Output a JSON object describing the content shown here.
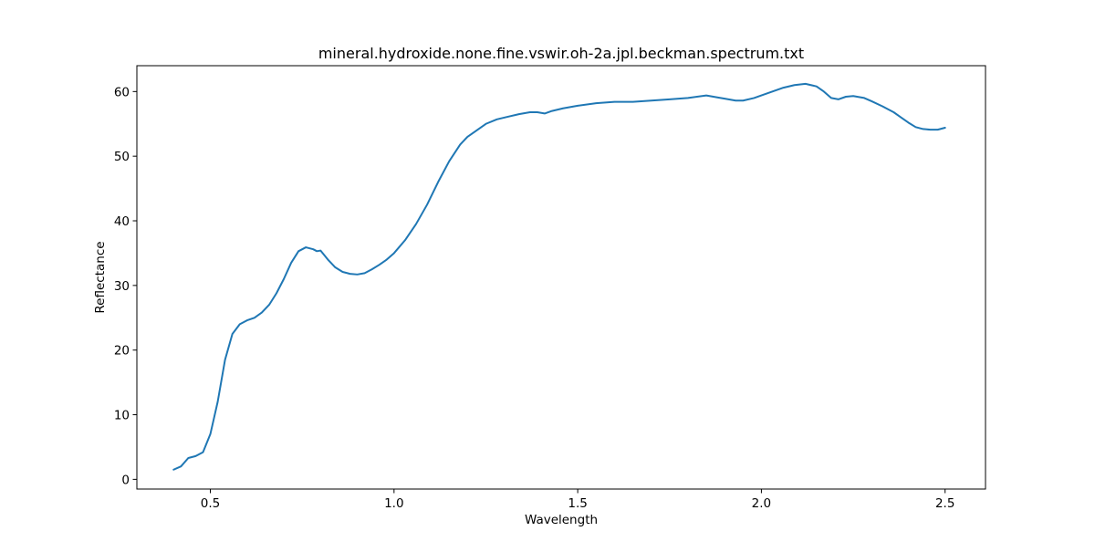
{
  "chart_data": {
    "type": "line",
    "title": "mineral.hydroxide.none.fine.vswir.oh-2a.jpl.beckman.spectrum.txt",
    "xlabel": "Wavelength",
    "ylabel": "Reflectance",
    "xlim": [
      0.3,
      2.61
    ],
    "ylim": [
      -1.5,
      64.0
    ],
    "xticks": [
      0.5,
      1.0,
      1.5,
      2.0,
      2.5
    ],
    "xtick_labels": [
      "0.5",
      "1.0",
      "1.5",
      "2.0",
      "2.5"
    ],
    "yticks": [
      0,
      10,
      20,
      30,
      40,
      50,
      60
    ],
    "ytick_labels": [
      "0",
      "10",
      "20",
      "30",
      "40",
      "50",
      "60"
    ],
    "grid": false,
    "legend": "none",
    "series": [
      {
        "color": "#1f77b4",
        "x": [
          0.4,
          0.42,
          0.44,
          0.46,
          0.48,
          0.5,
          0.52,
          0.54,
          0.56,
          0.58,
          0.6,
          0.62,
          0.64,
          0.66,
          0.68,
          0.7,
          0.72,
          0.74,
          0.76,
          0.78,
          0.79,
          0.8,
          0.82,
          0.84,
          0.86,
          0.88,
          0.9,
          0.92,
          0.94,
          0.96,
          0.98,
          1.0,
          1.03,
          1.06,
          1.09,
          1.12,
          1.15,
          1.18,
          1.2,
          1.22,
          1.25,
          1.28,
          1.31,
          1.34,
          1.37,
          1.39,
          1.41,
          1.43,
          1.46,
          1.5,
          1.55,
          1.6,
          1.65,
          1.7,
          1.75,
          1.8,
          1.85,
          1.88,
          1.9,
          1.93,
          1.95,
          1.98,
          2.0,
          2.03,
          2.06,
          2.09,
          2.12,
          2.15,
          2.17,
          2.19,
          2.21,
          2.23,
          2.25,
          2.28,
          2.3,
          2.33,
          2.36,
          2.38,
          2.4,
          2.42,
          2.44,
          2.46,
          2.48,
          2.5
        ],
        "y": [
          1.5,
          2.0,
          3.3,
          3.6,
          4.2,
          7.0,
          12.0,
          18.5,
          22.5,
          24.0,
          24.6,
          25.0,
          25.8,
          27.0,
          28.8,
          31.0,
          33.5,
          35.3,
          35.9,
          35.6,
          35.3,
          35.4,
          34.0,
          32.8,
          32.1,
          31.8,
          31.7,
          31.9,
          32.5,
          33.2,
          34.0,
          35.0,
          37.0,
          39.5,
          42.5,
          46.0,
          49.2,
          51.8,
          53.0,
          53.8,
          55.0,
          55.7,
          56.1,
          56.5,
          56.8,
          56.8,
          56.6,
          57.0,
          57.4,
          57.8,
          58.2,
          58.4,
          58.4,
          58.6,
          58.8,
          59.0,
          59.4,
          59.1,
          58.9,
          58.6,
          58.6,
          59.0,
          59.4,
          60.0,
          60.6,
          61.0,
          61.2,
          60.8,
          60.0,
          59.0,
          58.8,
          59.2,
          59.3,
          59.0,
          58.5,
          57.7,
          56.8,
          56.0,
          55.2,
          54.5,
          54.2,
          54.1,
          54.1,
          54.4
        ]
      }
    ]
  }
}
